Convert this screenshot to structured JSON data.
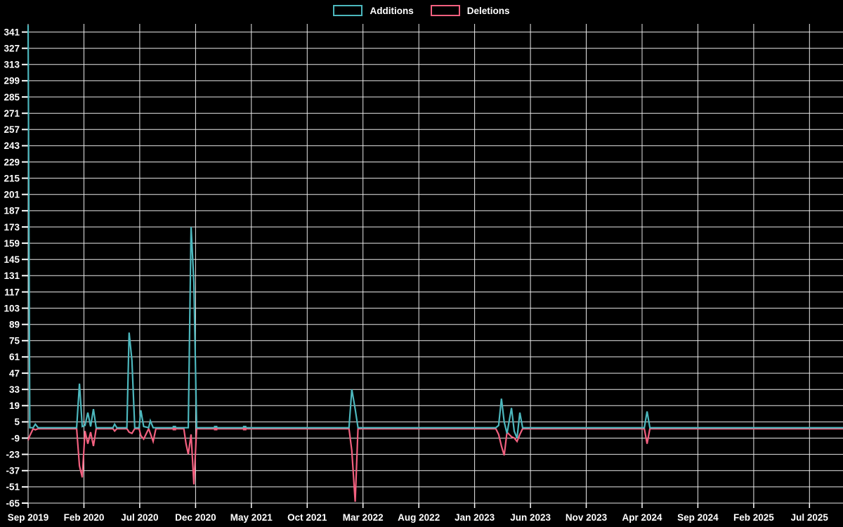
{
  "legend": {
    "additions_label": "Additions",
    "deletions_label": "Deletions"
  },
  "colors": {
    "additions": "#4cb7bd",
    "deletions": "#f2607f",
    "grid": "#e9e9e9",
    "text": "#ffffff",
    "background": "#000000"
  },
  "chart_data": {
    "type": "line",
    "title": "",
    "xlabel": "",
    "ylabel": "",
    "grid": true,
    "legend_position": "top-center",
    "x_tick_labels": [
      "Sep 2019",
      "Feb 2020",
      "Jul 2020",
      "Dec 2020",
      "May 2021",
      "Oct 2021",
      "Mar 2022",
      "Aug 2022",
      "Jan 2023",
      "Jun 2023",
      "Nov 2023",
      "Apr 2024",
      "Sep 2024",
      "Feb 2025",
      "Jul 2025"
    ],
    "x_tick_months": [
      0,
      5,
      10,
      15,
      20,
      25,
      30,
      35,
      40,
      45,
      50,
      55,
      60,
      65,
      70
    ],
    "x_domain_months": [
      0,
      73
    ],
    "y_ticks": [
      341,
      327,
      313,
      299,
      285,
      271,
      257,
      243,
      229,
      215,
      201,
      187,
      173,
      159,
      145,
      131,
      117,
      103,
      89,
      75,
      61,
      47,
      33,
      19,
      5,
      -9,
      -23,
      -37,
      -51,
      -65
    ],
    "ylim": [
      -65,
      348
    ],
    "x_months": [
      0,
      0.15,
      0.45,
      0.65,
      0.9,
      4.35,
      4.6,
      4.85,
      5.1,
      5.35,
      5.6,
      5.85,
      6.1,
      7.6,
      7.75,
      7.95,
      8.85,
      9.05,
      9.3,
      9.55,
      9.95,
      10.1,
      10.35,
      10.8,
      10.95,
      11.2,
      11.45,
      13.1,
      13.95,
      14.15,
      14.35,
      14.6,
      14.85,
      15.1,
      16.8,
      19.4,
      28.75,
      29.0,
      29.3,
      29.55,
      41.9,
      42.15,
      42.4,
      42.65,
      42.9,
      43.3,
      43.55,
      43.8,
      44.05,
      44.3,
      55.2,
      55.45,
      55.7,
      73.0
    ],
    "series": [
      {
        "name": "Additions",
        "values": [
          347,
          0,
          0,
          3,
          0,
          0,
          38,
          1,
          2,
          13,
          1,
          16,
          0,
          0,
          3,
          0,
          0,
          82,
          58,
          0,
          0,
          15,
          1,
          0,
          6,
          0,
          0,
          0,
          0,
          0,
          0,
          173,
          125,
          0,
          0,
          0,
          0,
          33,
          16,
          0,
          0,
          2,
          25,
          5,
          -5,
          17,
          -3,
          -9,
          13,
          0,
          0,
          14,
          0,
          0
        ]
      },
      {
        "name": "Deletions",
        "values": [
          -10,
          -6,
          0,
          -1,
          0,
          0,
          -32,
          -42,
          -2,
          -13,
          -3,
          -15,
          0,
          0,
          -2,
          0,
          0,
          -3,
          -4,
          0,
          0,
          -6,
          -9,
          0,
          -4,
          -11,
          0,
          0,
          0,
          -13,
          -22,
          -5,
          -48,
          0,
          0,
          0,
          0,
          -19,
          -63,
          0,
          0,
          -5,
          -15,
          -23,
          -3,
          -7,
          -8,
          -11,
          -5,
          0,
          0,
          -13,
          0,
          0
        ]
      }
    ],
    "zero_marker_months": [
      13.1,
      16.8,
      19.4
    ]
  }
}
